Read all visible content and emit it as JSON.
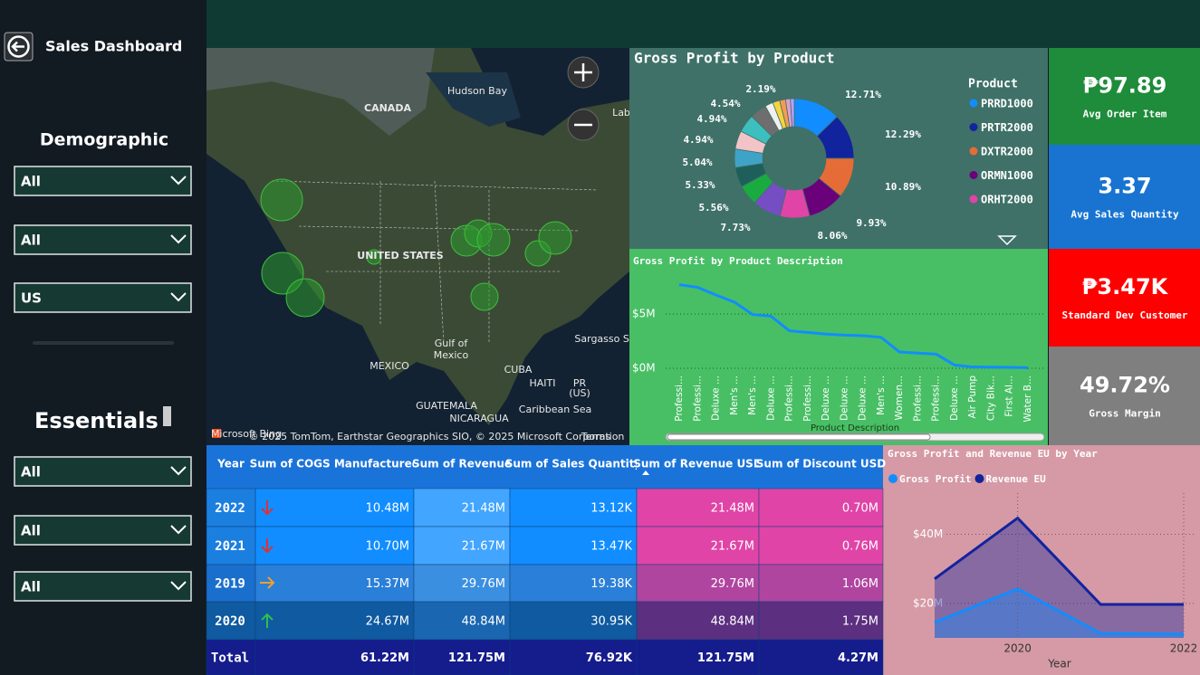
{
  "sidebar": {
    "title": "Sales Dashboard",
    "sections": [
      {
        "heading": "Demographic",
        "filters": [
          "All",
          "All",
          "US"
        ]
      },
      {
        "heading": "Essentials",
        "filters": [
          "All",
          "All",
          "All"
        ]
      }
    ]
  },
  "map": {
    "labels": [
      "Hudson Bay",
      "CANADA",
      "Lab",
      "UNITED STATES",
      "Gulf of",
      "Mexico",
      "Sargasso Se",
      "MEXICO",
      "CUBA",
      "HAITI",
      "PR",
      "(US)",
      "GUATEMALA",
      "NICARAGUA",
      "Caribbean Sea",
      "Microsoft Bing",
      "© 2025 TomTom, Earthstar Geographics SIO, © 2025 Microsoft Corporation",
      "Terms"
    ]
  },
  "kpis": [
    {
      "value": "₱97.89",
      "label": "Avg Order Item"
    },
    {
      "value": "3.37",
      "label": "Avg Sales Quantity"
    },
    {
      "value": "₱3.47K",
      "label": "Standard Dev Customer"
    },
    {
      "value": "49.72%",
      "label": "Gross Margin"
    }
  ],
  "table": {
    "headers": [
      "Year",
      "Sum of COGS Manufactured",
      "Sum of Revenue",
      "Sum of Sales Quantity",
      "Sum of Revenue USD",
      "Sum of Discount USD"
    ],
    "rows": [
      [
        "2022",
        "10.48M",
        "21.48M",
        "13.12K",
        "21.48M",
        "0.70M"
      ],
      [
        "2021",
        "10.70M",
        "21.67M",
        "13.47K",
        "21.67M",
        "0.76M"
      ],
      [
        "2019",
        "15.37M",
        "29.76M",
        "19.38K",
        "29.76M",
        "1.06M"
      ],
      [
        "2020",
        "24.67M",
        "48.84M",
        "30.95K",
        "48.84M",
        "1.75M"
      ],
      [
        "Total",
        "61.22M",
        "121.75M",
        "76.92K",
        "121.75M",
        "4.27M"
      ]
    ]
  },
  "chart_data": [
    {
      "type": "pie",
      "title": "Gross Profit by Product",
      "legend_title": "Product",
      "donut": true,
      "categories": [
        "PRRD1000",
        "PRTR2000",
        "DXTR2000",
        "ORMN1000",
        "ORHT2000",
        null,
        null,
        null,
        null,
        null,
        null,
        null,
        null,
        null,
        null,
        null,
        null
      ],
      "values": [
        12.71,
        12.29,
        10.89,
        9.93,
        8.06,
        7.73,
        5.56,
        5.33,
        5.04,
        4.94,
        4.94,
        4.54,
        2.19,
        1.9,
        1.6,
        1.3,
        1.05
      ],
      "value_labels": [
        "12.71%",
        "12.29%",
        "10.89%",
        "9.93%",
        "8.06%",
        "7.73%",
        "5.56%",
        "5.33%",
        "5.04%",
        "4.94%",
        "4.94%",
        "4.54%",
        "2.19%",
        null,
        null,
        null,
        null
      ],
      "colors": [
        "#118DFF",
        "#12239E",
        "#E66C37",
        "#6B007B",
        "#E044A7",
        "#744EC2",
        "#1AAB40",
        "#1F5F5B",
        "#3FA3C8",
        "#F2C4C8",
        "#3DBFBF",
        "#6E6E6E",
        "#F0F0F0",
        "#F5D33F",
        "#F39C50",
        "#E0A0D0",
        "#B5A1FF"
      ]
    },
    {
      "type": "line",
      "title": "Gross Profit by Product Description",
      "x_label": "Product Description",
      "categories": [
        "Professi...",
        "Professi...",
        "Deluxe ...",
        "Men's ...",
        "Men's ...",
        "Deluxe ...",
        "Professi...",
        "Professi...",
        "Deluxe ...",
        "Deluxe ...",
        "Deluxe ...",
        "Men's ...",
        "Women...",
        "Professi...",
        "Professi...",
        "Deluxe ...",
        "Air Pump",
        "City Bik...",
        "First Al...",
        "Water B..."
      ],
      "values": [
        7.7,
        7.45,
        6.75,
        6.1,
        4.95,
        4.8,
        3.45,
        3.3,
        3.15,
        3.05,
        3.0,
        2.85,
        1.5,
        1.4,
        1.3,
        0.3,
        0.12,
        0.1,
        0.08,
        0.05
      ],
      "color": "#118DFF",
      "ylim": [
        0,
        8.5
      ],
      "yticks": [
        {
          "value": 0,
          "label": "$0M"
        },
        {
          "value": 5,
          "label": "$5M"
        }
      ],
      "grid": true
    },
    {
      "type": "area",
      "title": "Gross Profit and Revenue EU by Year",
      "x_label": "Year",
      "categories": [
        null,
        "2020",
        null,
        "2022"
      ],
      "series": [
        {
          "name": "Gross Profit",
          "color": "#118DFF",
          "values": [
            14.5,
            24.2,
            11.3,
            11.1
          ]
        },
        {
          "name": "Revenue EU",
          "color": "#12239E",
          "values": [
            27.1,
            44.7,
            19.7,
            19.7
          ]
        }
      ],
      "ylim": [
        10,
        48
      ],
      "yticks": [
        {
          "value": 20,
          "label": "$20M"
        },
        {
          "value": 40,
          "label": "$40M"
        }
      ],
      "grid": true,
      "legend": "top-left"
    }
  ]
}
